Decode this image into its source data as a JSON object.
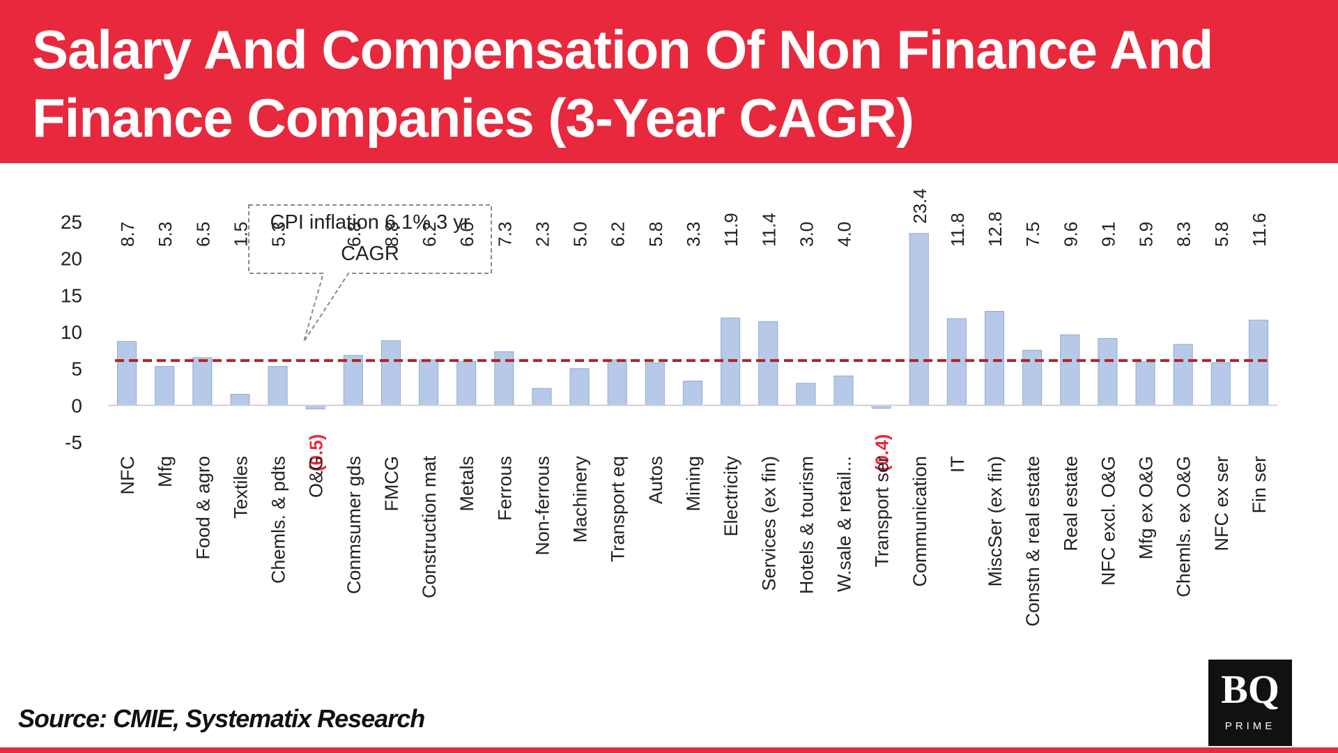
{
  "header": {
    "title": "Salary And Compensation Of Non Finance And Finance Companies (3-Year CAGR)"
  },
  "annotation": {
    "line1": "CPI inflation  6.1% 3 yr",
    "line2": "CAGR"
  },
  "source": "Source: CMIE, Systematix Research",
  "logo": {
    "mark": "BQ",
    "sub": "PRIME"
  },
  "colors": {
    "header_bg": "#e8283c",
    "bar_fill": "#b7c9e8",
    "bar_stroke": "#8eaad8",
    "reference_line": "#b22222",
    "negative_label": "#e8283c"
  },
  "chart_data": {
    "type": "bar",
    "categories": [
      "NFC",
      "Mfg",
      "Food & agro",
      "Textiles",
      "Chemls. & pdts",
      "O&G",
      "Conmsumer gds",
      "FMCG",
      "Construction mat",
      "Metals",
      "Ferrous",
      "Non-ferrous",
      "Machinery",
      "Transport eq",
      "Autos",
      "Mining",
      "Electricity",
      "Services (ex fin)",
      "Hotels & tourism",
      "W.sale & retail...",
      "Transport ser",
      "Communication",
      "IT",
      "MiscSer (ex fin)",
      "Constn & real estate",
      "Real estate",
      "NFC excl. O&G",
      "Mfg ex O&G",
      "Chemls. ex O&G",
      "NFC ex ser",
      "Fin ser"
    ],
    "values": [
      8.7,
      5.3,
      6.5,
      1.5,
      5.3,
      -0.5,
      6.8,
      8.8,
      6.2,
      6.0,
      7.3,
      2.3,
      5.0,
      6.2,
      5.8,
      3.3,
      11.9,
      11.4,
      3.0,
      4.0,
      -0.4,
      23.4,
      11.8,
      12.8,
      7.5,
      9.6,
      9.1,
      5.9,
      8.3,
      5.8,
      11.6
    ],
    "data_labels": [
      "8.7",
      "5.3",
      "6.5",
      "1.5",
      "5.3",
      "(0.5)",
      "6.8",
      "8.8",
      "6.2",
      "6.0",
      "7.3",
      "2.3",
      "5.0",
      "6.2",
      "5.8",
      "3.3",
      "11.9",
      "11.4",
      "3.0",
      "4.0",
      "(0.4)",
      "23.4",
      "11.8",
      "12.8",
      "7.5",
      "9.6",
      "9.1",
      "5.9",
      "8.3",
      "5.8",
      "11.6"
    ],
    "yticks": [
      "25",
      "20",
      "15",
      "10",
      "5",
      "0",
      "-5"
    ],
    "ylim": [
      -5,
      25
    ],
    "reference_line": {
      "value": 6.1,
      "style": "dashed"
    },
    "grid": false,
    "legend": "none"
  }
}
